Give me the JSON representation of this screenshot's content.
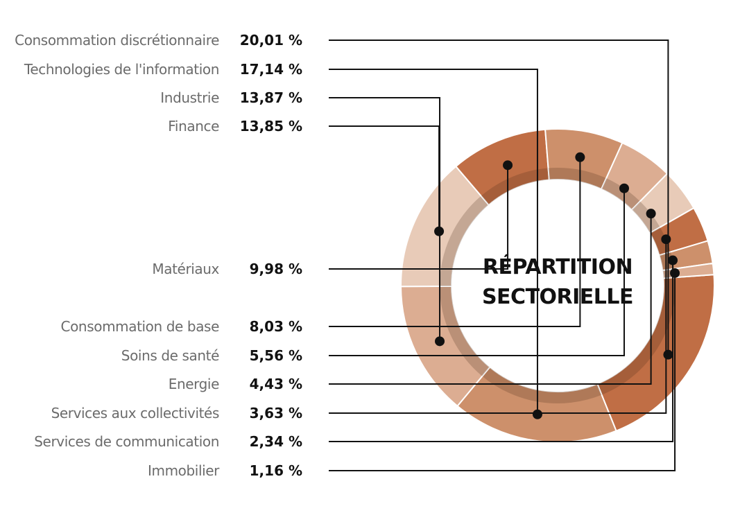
{
  "chart_data": {
    "type": "pie",
    "title_lines": [
      "RÉPARTITION",
      "SECTORIELLE"
    ],
    "slices": [
      {
        "label": "Consommation discrétionnaire",
        "value": 20.01,
        "value_text": "20,01 %",
        "color": "#c06e45"
      },
      {
        "label": "Technologies de l'information",
        "value": 17.14,
        "value_text": "17,14 %",
        "color": "#cd906b"
      },
      {
        "label": "Industrie",
        "value": 13.87,
        "value_text": "13,87 %",
        "color": "#dcad92"
      },
      {
        "label": "Finance",
        "value": 13.85,
        "value_text": "13,85 %",
        "color": "#e8cbb8"
      },
      {
        "label": "Matériaux",
        "value": 9.98,
        "value_text": "9,98 %",
        "color": "#c06e45"
      },
      {
        "label": "Consommation de base",
        "value": 8.03,
        "value_text": "8,03 %",
        "color": "#cd906b"
      },
      {
        "label": "Soins de santé",
        "value": 5.56,
        "value_text": "5,56 %",
        "color": "#dcad92"
      },
      {
        "label": "Energie",
        "value": 4.43,
        "value_text": "4,43 %",
        "color": "#e8cbb8"
      },
      {
        "label": "Services aux collectivités",
        "value": 3.63,
        "value_text": "3,63 %",
        "color": "#c06e45"
      },
      {
        "label": "Services de communication",
        "value": 2.34,
        "value_text": "2,34 %",
        "color": "#cd906b"
      },
      {
        "label": "Immobilier",
        "value": 1.16,
        "value_text": "1,16 %",
        "color": "#dcad92"
      }
    ],
    "legend_position": "left",
    "grid": false
  }
}
